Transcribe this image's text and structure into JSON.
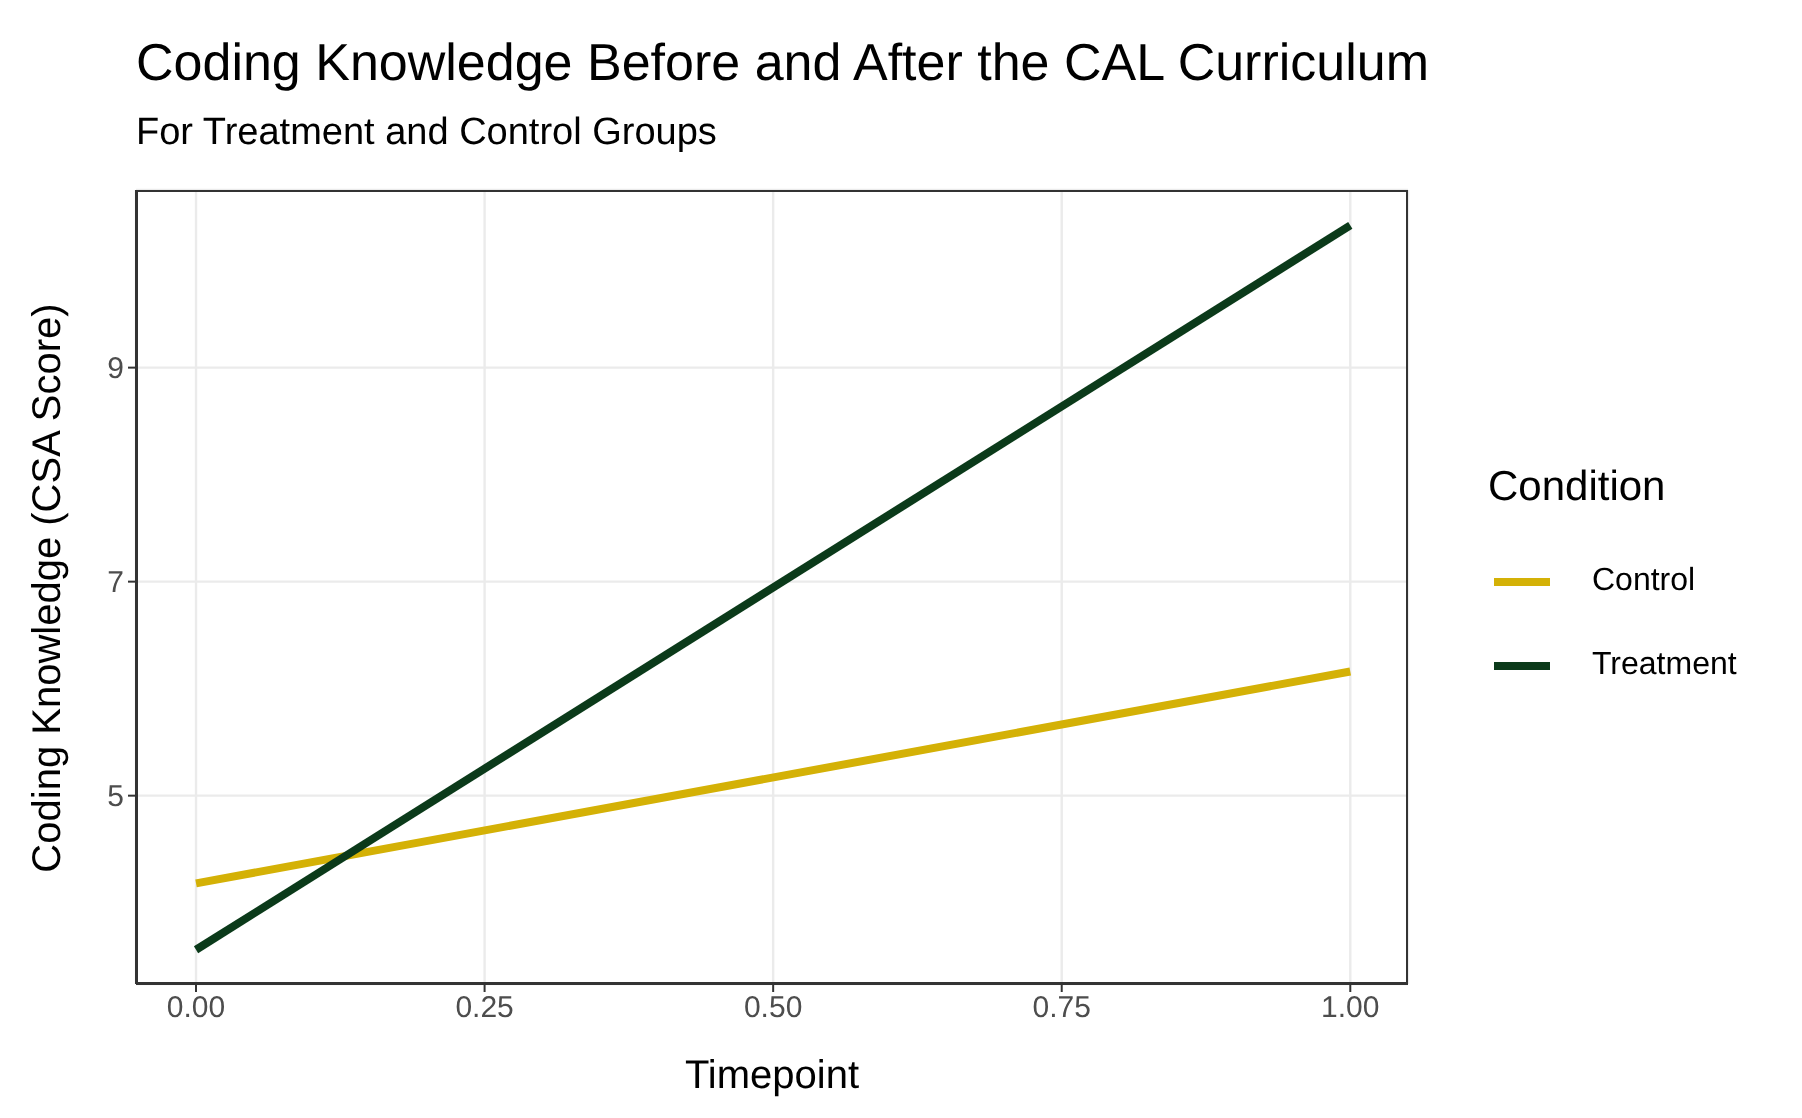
{
  "chart_data": {
    "type": "line",
    "title": "Coding Knowledge Before and After the CAL Curriculum",
    "subtitle": "For Treatment and Control Groups",
    "xlabel": "Timepoint",
    "ylabel": "Coding Knowledge (CSA Score)",
    "legend_title": "Condition",
    "x": [
      0,
      1
    ],
    "series": [
      {
        "name": "Control",
        "color": "#d4b106",
        "values": [
          4.18,
          6.16
        ]
      },
      {
        "name": "Treatment",
        "color": "#0b3a1a",
        "values": [
          3.56,
          10.33
        ]
      }
    ],
    "xlim": [
      -0.052,
      1.05
    ],
    "xticks": [
      {
        "value": 0,
        "label": "0.00"
      },
      {
        "value": 0.25,
        "label": "0.25"
      },
      {
        "value": 0.5,
        "label": "0.50"
      },
      {
        "value": 0.75,
        "label": "0.75"
      },
      {
        "value": 1,
        "label": "1.00"
      }
    ],
    "ylim": [
      3.24,
      10.66
    ],
    "yticks": [
      5,
      7,
      9
    ],
    "grid": true,
    "legend": "right",
    "marker": "none",
    "line_style": "solid"
  }
}
